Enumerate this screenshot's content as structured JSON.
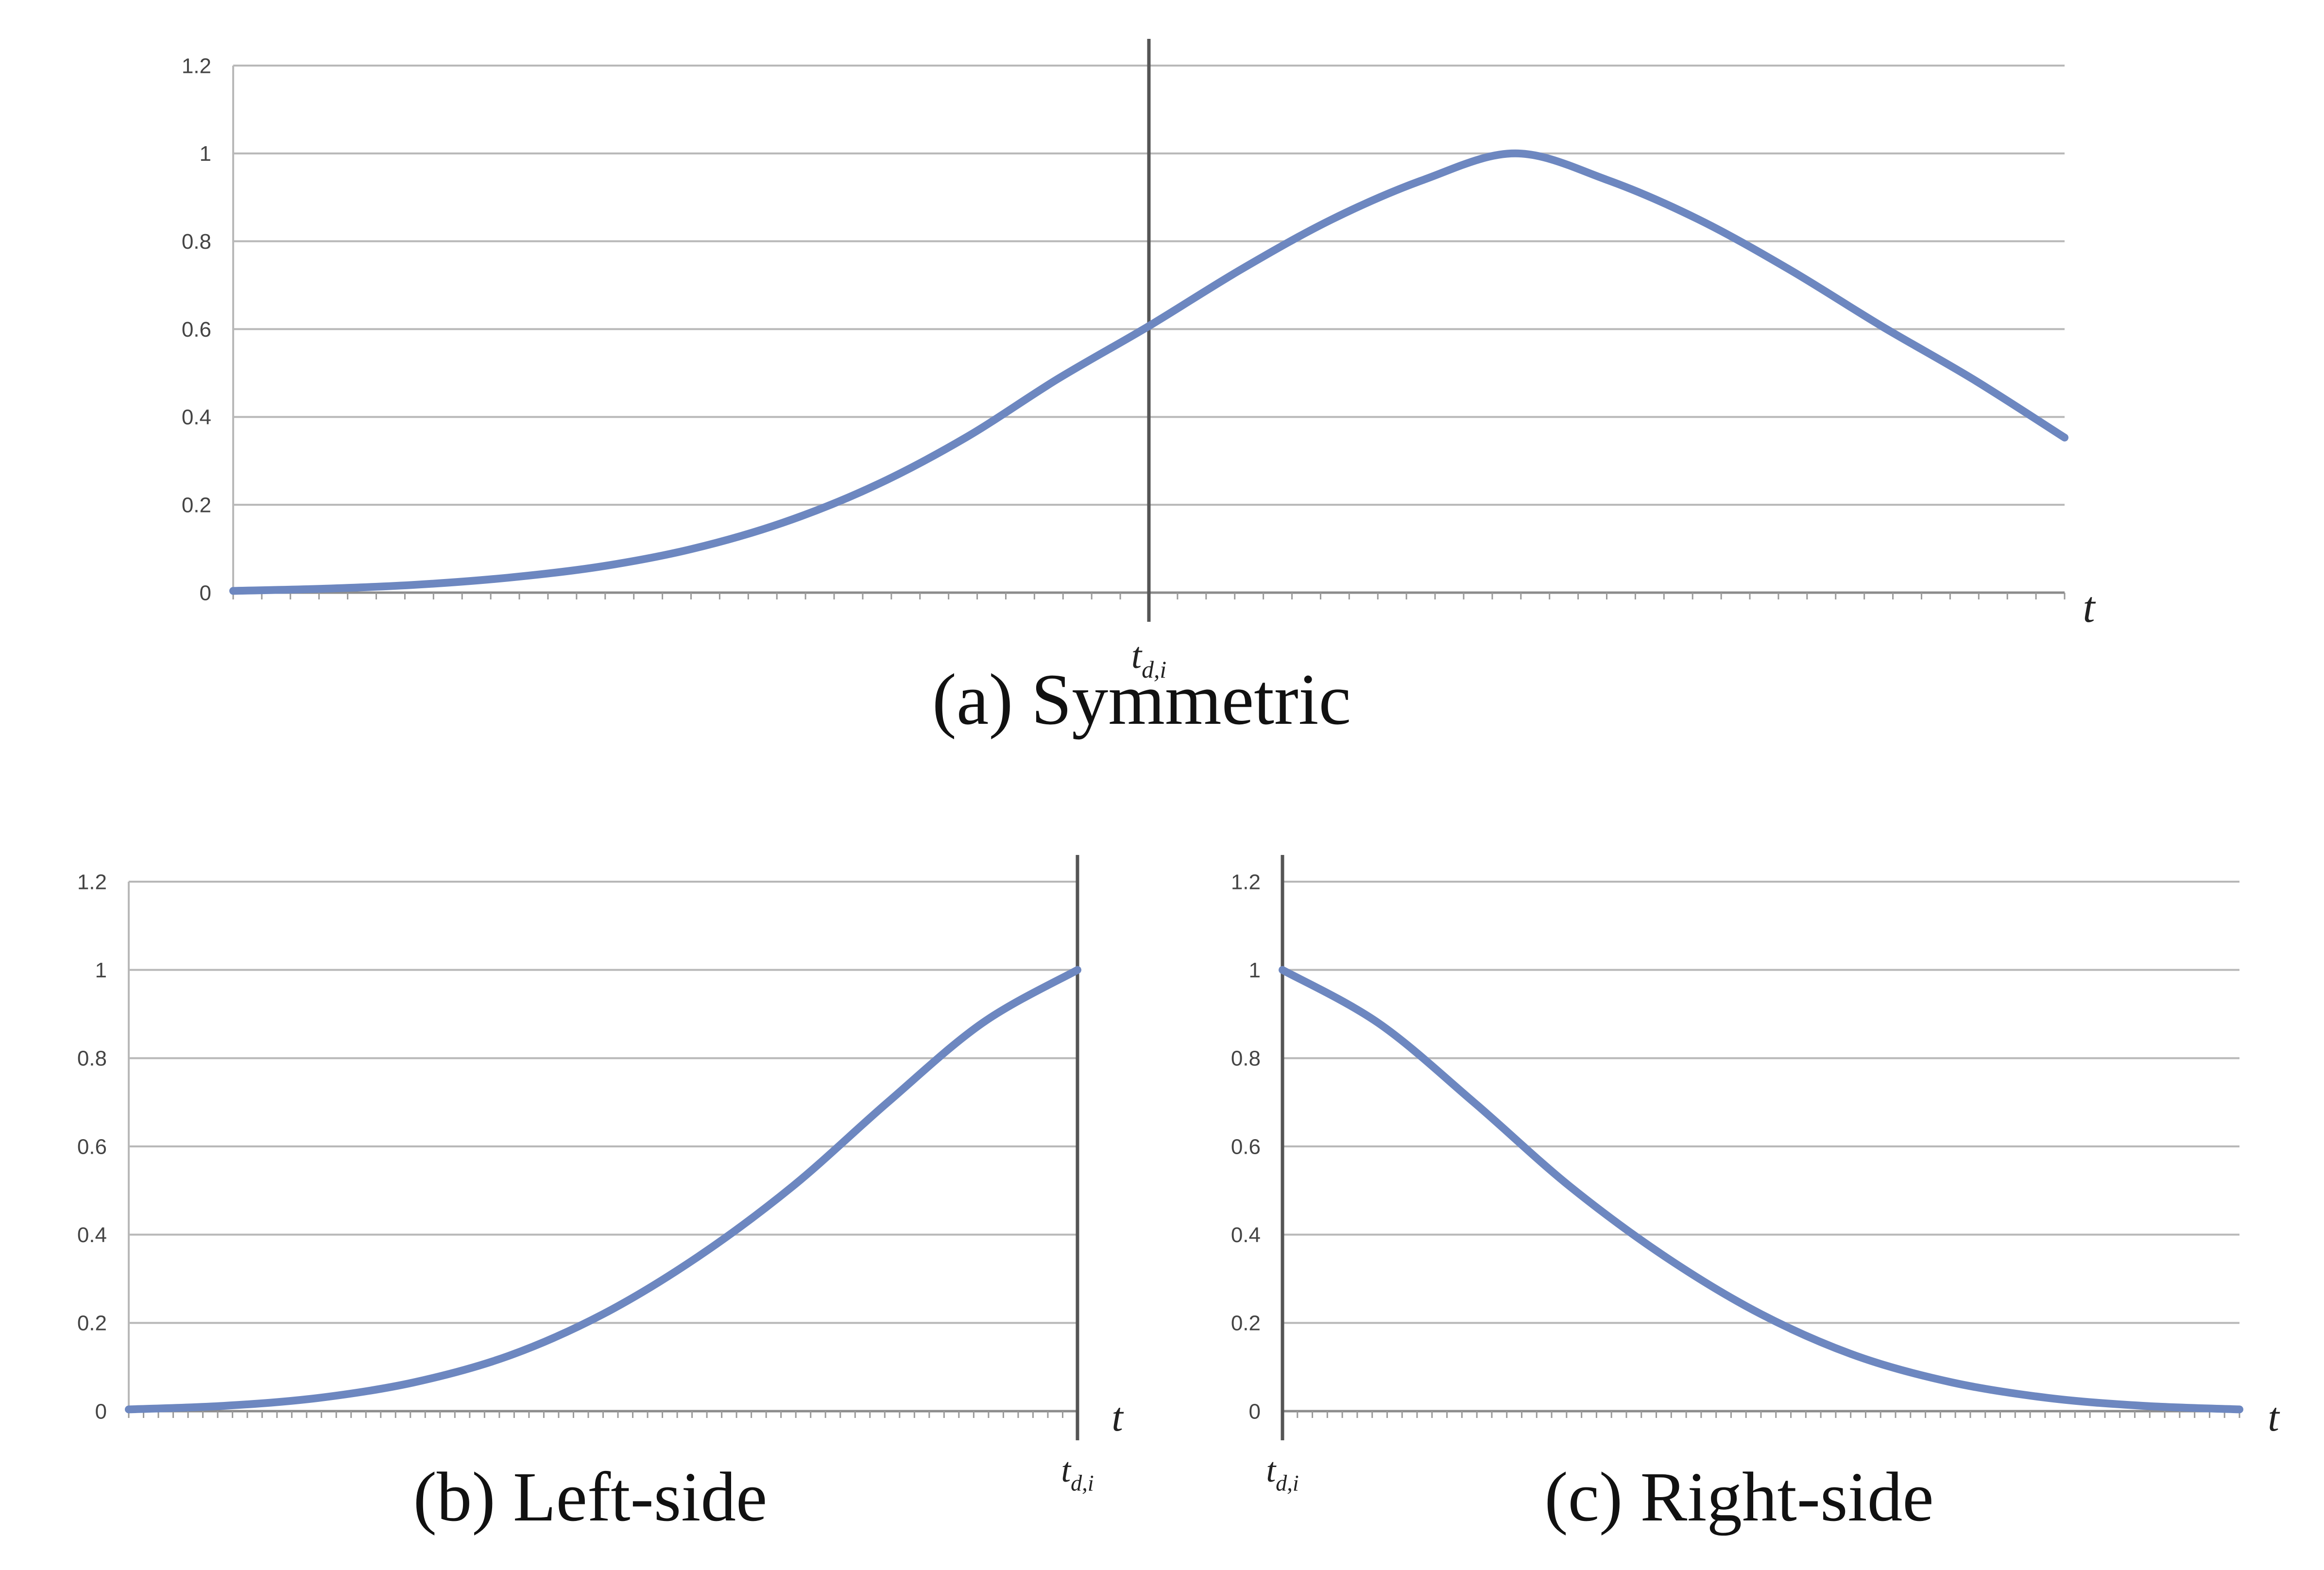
{
  "chart_data": [
    {
      "type": "line",
      "title": "(a) Symmetric",
      "xlabel": "t",
      "ylabel": "",
      "ylim": [
        0,
        1.2
      ],
      "xlim": [
        -5,
        5
      ],
      "y_ticks": [
        "0",
        "0.2",
        "0.4",
        "0.6",
        "0.8",
        "1",
        "1.2"
      ],
      "marker_label": "t",
      "marker_subscript": "d,i",
      "marker_x": 0,
      "grid": true,
      "line_color": "#6d87c0",
      "series": [
        {
          "x": [
            -5,
            -4.5,
            -4,
            -3.5,
            -3,
            -2.5,
            -2,
            -1.5,
            -1,
            -0.5,
            0,
            0.5,
            1,
            1.5,
            2,
            2.5,
            3,
            3.5,
            4,
            4.5,
            5
          ],
          "values": [
            0.004,
            0.009,
            0.018,
            0.034,
            0.059,
            0.099,
            0.159,
            0.243,
            0.353,
            0.486,
            0.607,
            0.735,
            0.85,
            0.94,
            1.0,
            0.94,
            0.85,
            0.735,
            0.607,
            0.486,
            0.353
          ]
        }
      ]
    },
    {
      "type": "line",
      "title": "(b) Left-side",
      "xlabel": "t",
      "ylabel": "",
      "ylim": [
        0,
        1.2
      ],
      "xlim": [
        -5,
        0
      ],
      "y_ticks": [
        "0",
        "0.2",
        "0.4",
        "0.6",
        "0.8",
        "1",
        "1.2"
      ],
      "marker_label": "t",
      "marker_subscript": "d,i",
      "marker_x": 0,
      "grid": true,
      "line_color": "#6d87c0",
      "series": [
        {
          "x": [
            -5,
            -4.5,
            -4,
            -3.5,
            -3,
            -2.5,
            -2,
            -1.5,
            -1,
            -0.5,
            0
          ],
          "values": [
            0.004,
            0.012,
            0.03,
            0.065,
            0.125,
            0.22,
            0.35,
            0.51,
            0.7,
            0.88,
            1.0
          ]
        }
      ]
    },
    {
      "type": "line",
      "title": "(c) Right-side",
      "xlabel": "t",
      "ylabel": "",
      "ylim": [
        0,
        1.2
      ],
      "xlim": [
        0,
        5
      ],
      "y_ticks": [
        "0",
        "0.2",
        "0.4",
        "0.6",
        "0.8",
        "1",
        "1.2"
      ],
      "marker_label": "t",
      "marker_subscript": "d,i",
      "marker_x": 0,
      "grid": true,
      "line_color": "#6d87c0",
      "series": [
        {
          "x": [
            0,
            0.5,
            1,
            1.5,
            2,
            2.5,
            3,
            3.5,
            4,
            4.5,
            5
          ],
          "values": [
            1.0,
            0.88,
            0.7,
            0.51,
            0.35,
            0.22,
            0.125,
            0.065,
            0.03,
            0.012,
            0.004
          ]
        }
      ]
    }
  ]
}
